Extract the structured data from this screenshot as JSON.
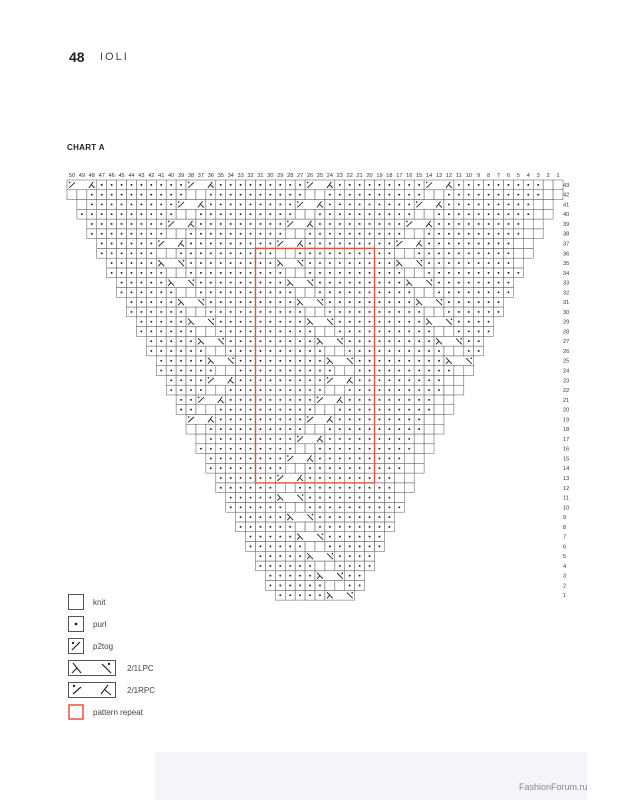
{
  "header": {
    "page_number": "48",
    "running_title": "IOLI"
  },
  "chart": {
    "title": "CHART A",
    "column_numbers": [
      50,
      49,
      48,
      47,
      46,
      45,
      44,
      43,
      42,
      41,
      40,
      39,
      38,
      37,
      36,
      35,
      34,
      33,
      32,
      31,
      30,
      29,
      28,
      27,
      26,
      25,
      24,
      23,
      22,
      21,
      20,
      19,
      18,
      17,
      16,
      15,
      14,
      13,
      12,
      11,
      10,
      9,
      8,
      7,
      6,
      5,
      4,
      3,
      2,
      1
    ],
    "row_numbers": [
      43,
      42,
      41,
      40,
      39,
      38,
      37,
      36,
      35,
      34,
      33,
      32,
      31,
      30,
      29,
      28,
      27,
      26,
      25,
      24,
      23,
      22,
      21,
      20,
      19,
      18,
      17,
      16,
      15,
      14,
      13,
      12,
      11,
      10,
      9,
      8,
      7,
      6,
      5,
      4,
      3,
      2,
      1
    ],
    "background_stitch": "purl",
    "cable_repeat_every_columns": 12,
    "cable_path": [
      {
        "row": 1,
        "type": "LPC",
        "col": 24
      },
      {
        "row": 3,
        "type": "LPC",
        "col": 25
      },
      {
        "row": 5,
        "type": "LPC",
        "col": 26
      },
      {
        "row": 7,
        "type": "LPC",
        "col": 27
      },
      {
        "row": 9,
        "type": "LPC",
        "col": 28
      },
      {
        "row": 11,
        "type": "LPC",
        "col": 29
      },
      {
        "row": 13,
        "type": "RPC",
        "col": 29
      },
      {
        "row": 15,
        "type": "RPC",
        "col": 28
      },
      {
        "row": 17,
        "type": "RPC",
        "col": 27
      },
      {
        "row": 19,
        "type": "RPC",
        "col": 26
      },
      {
        "row": 21,
        "type": "RPC",
        "col": 25
      },
      {
        "row": 23,
        "type": "RPC",
        "col": 24
      },
      {
        "row": 25,
        "type": "LPC",
        "col": 24
      },
      {
        "row": 27,
        "type": "LPC",
        "col": 25
      },
      {
        "row": 29,
        "type": "LPC",
        "col": 26
      },
      {
        "row": 31,
        "type": "LPC",
        "col": 27
      },
      {
        "row": 33,
        "type": "LPC",
        "col": 28
      },
      {
        "row": 35,
        "type": "LPC",
        "col": 29
      },
      {
        "row": 37,
        "type": "RPC",
        "col": 29
      },
      {
        "row": 39,
        "type": "RPC",
        "col": 28
      },
      {
        "row": 41,
        "type": "RPC",
        "col": 27
      },
      {
        "row": 43,
        "type": "RPC",
        "col": 26
      }
    ],
    "pattern_repeat": {
      "rows": [
        13,
        36
      ],
      "columns": [
        31,
        20
      ],
      "color": "#e0533a"
    }
  },
  "legend": [
    {
      "symbol": "knit",
      "label": "knit"
    },
    {
      "symbol": "purl",
      "label": "purl"
    },
    {
      "symbol": "p2tog",
      "label": "p2tog"
    },
    {
      "symbol": "LPC",
      "label": "2/1LPC"
    },
    {
      "symbol": "RPC",
      "label": "2/1RPC"
    },
    {
      "symbol": "repeat",
      "label": "pattern repeat"
    }
  ],
  "watermark": "FashionForum.ru",
  "colors": {
    "grid": "#555555",
    "repeat": "#e0533a",
    "band": "#f6f3fb"
  }
}
